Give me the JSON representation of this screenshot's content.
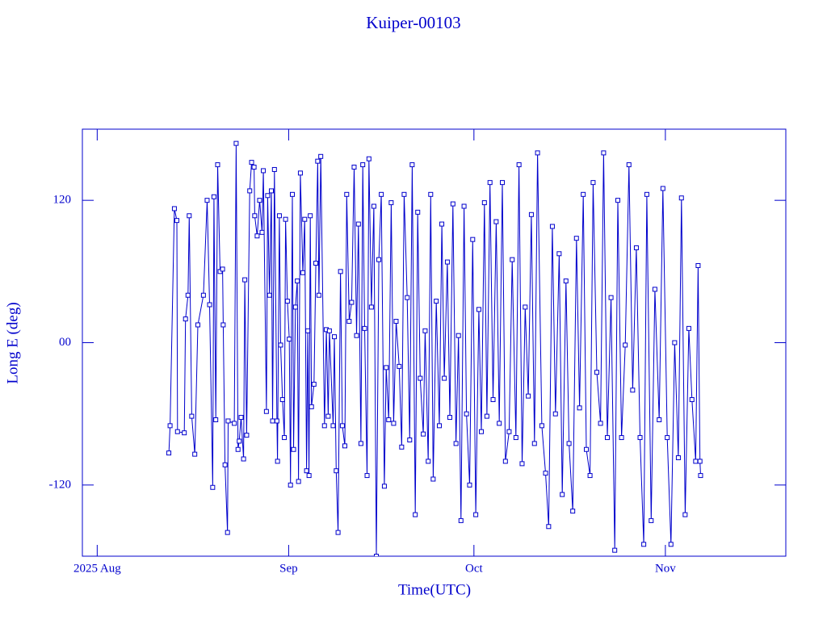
{
  "chart_data": {
    "type": "line",
    "title": "Kuiper-00103",
    "xlabel": "Time(UTC)",
    "ylabel": "Long E (deg)",
    "color": "#0000cc",
    "marker": "square",
    "xlim": [
      -2.4,
      111.5
    ],
    "ylim": [
      -180,
      180
    ],
    "xticks": [
      {
        "value": 0,
        "label": "2025 Aug"
      },
      {
        "value": 31,
        "label": "Sep"
      },
      {
        "value": 61,
        "label": "Oct"
      },
      {
        "value": 92,
        "label": "Nov"
      }
    ],
    "yticks": [
      -120,
      {
        "value": 0,
        "label": "00"
      },
      120
    ],
    "x": [
      11.6,
      11.8,
      12.5,
      12.9,
      13.0,
      14.1,
      14.3,
      14.7,
      14.9,
      15.3,
      15.8,
      16.3,
      17.2,
      17.8,
      18.2,
      18.7,
      18.9,
      19.2,
      19.5,
      19.9,
      20.3,
      20.4,
      20.7,
      21.1,
      21.2,
      22.2,
      22.5,
      22.8,
      23.0,
      23.3,
      23.7,
      23.9,
      24.2,
      24.7,
      25.0,
      25.4,
      25.5,
      25.9,
      26.3,
      26.7,
      26.9,
      27.4,
      27.6,
      27.9,
      28.2,
      28.4,
      28.7,
      29.1,
      29.2,
      29.5,
      29.7,
      30.0,
      30.3,
      30.5,
      30.8,
      31.1,
      31.3,
      31.6,
      31.8,
      32.1,
      32.4,
      32.6,
      32.9,
      33.3,
      33.6,
      33.9,
      34.1,
      34.3,
      34.5,
      34.7,
      35.1,
      35.4,
      35.7,
      35.9,
      36.2,
      36.8,
      37.1,
      37.4,
      37.6,
      38.2,
      38.4,
      38.7,
      39.0,
      39.4,
      39.7,
      40.1,
      40.4,
      40.8,
      41.2,
      41.6,
      42.0,
      42.3,
      42.7,
      43.0,
      43.3,
      43.7,
      44.0,
      44.4,
      44.8,
      45.2,
      45.6,
      46.0,
      46.5,
      46.8,
      47.2,
      47.6,
      48.0,
      48.4,
      48.9,
      49.3,
      49.7,
      50.2,
      50.6,
      51.0,
      51.5,
      51.9,
      52.3,
      52.8,
      53.1,
      53.6,
      54.0,
      54.4,
      54.9,
      55.4,
      55.8,
      56.2,
      56.7,
      57.1,
      57.6,
      58.1,
      58.5,
      58.9,
      59.4,
      59.8,
      60.3,
      60.8,
      61.3,
      61.8,
      62.2,
      62.7,
      63.1,
      63.6,
      64.1,
      64.6,
      65.1,
      65.6,
      66.1,
      66.7,
      67.2,
      67.8,
      68.3,
      68.8,
      69.3,
      69.8,
      70.3,
      70.8,
      71.3,
      72.0,
      72.6,
      73.1,
      73.7,
      74.2,
      74.8,
      75.3,
      75.9,
      76.4,
      77.0,
      77.6,
      78.1,
      78.7,
      79.2,
      79.8,
      80.3,
      80.9,
      81.5,
      82.0,
      82.6,
      83.2,
      83.8,
      84.3,
      84.9,
      85.5,
      86.1,
      86.7,
      87.3,
      87.9,
      88.5,
      89.0,
      89.7,
      90.3,
      91.0,
      91.6,
      92.3,
      92.9,
      93.5,
      94.1,
      94.6,
      95.2,
      95.8,
      96.3,
      96.9,
      97.3,
      97.6,
      97.7
    ],
    "values": [
      -93,
      -70,
      113,
      103,
      -75,
      -76,
      20,
      40,
      107,
      -62,
      -94,
      15,
      40,
      120,
      32,
      -122,
      123,
      -65,
      150,
      60,
      62,
      15,
      -103,
      -160,
      -66,
      -68,
      168,
      -90,
      -83,
      -63,
      -98,
      53,
      -78,
      128,
      152,
      148,
      107,
      90,
      120,
      93,
      145,
      -58,
      124,
      40,
      128,
      -66,
      146,
      -66,
      -100,
      107,
      -2,
      -48,
      -80,
      104,
      35,
      3,
      -120,
      125,
      -90,
      30,
      52,
      -117,
      143,
      59,
      104,
      -108,
      10,
      -112,
      107,
      -54,
      -35,
      67,
      153,
      40,
      157,
      -70,
      11,
      -62,
      10,
      -70,
      5,
      -108,
      -160,
      60,
      -70,
      -87,
      125,
      18,
      34,
      148,
      6,
      100,
      -85,
      150,
      12,
      -112,
      155,
      30,
      115,
      -180,
      70,
      125,
      -121,
      -21,
      -65,
      118,
      -68,
      18,
      -20,
      -88,
      125,
      38,
      -82,
      150,
      -145,
      110,
      -30,
      -77,
      10,
      -100,
      125,
      -115,
      35,
      -70,
      100,
      -30,
      68,
      -63,
      117,
      -85,
      6,
      -150,
      115,
      -60,
      -120,
      87,
      -145,
      28,
      -75,
      118,
      -62,
      135,
      -48,
      102,
      -68,
      135,
      -100,
      -75,
      70,
      -80,
      150,
      -102,
      30,
      -45,
      108,
      -85,
      160,
      -70,
      -110,
      -155,
      98,
      -60,
      75,
      -128,
      52,
      -85,
      -142,
      88,
      -55,
      125,
      -90,
      -112,
      135,
      -25,
      -68,
      160,
      -80,
      38,
      -175,
      120,
      -80,
      -2,
      150,
      -40,
      80,
      -80,
      -170,
      125,
      -150,
      45,
      -65,
      130,
      -80,
      -170,
      0,
      -97,
      122,
      -145,
      12,
      -48,
      -100,
      65,
      -100,
      -112
    ]
  }
}
